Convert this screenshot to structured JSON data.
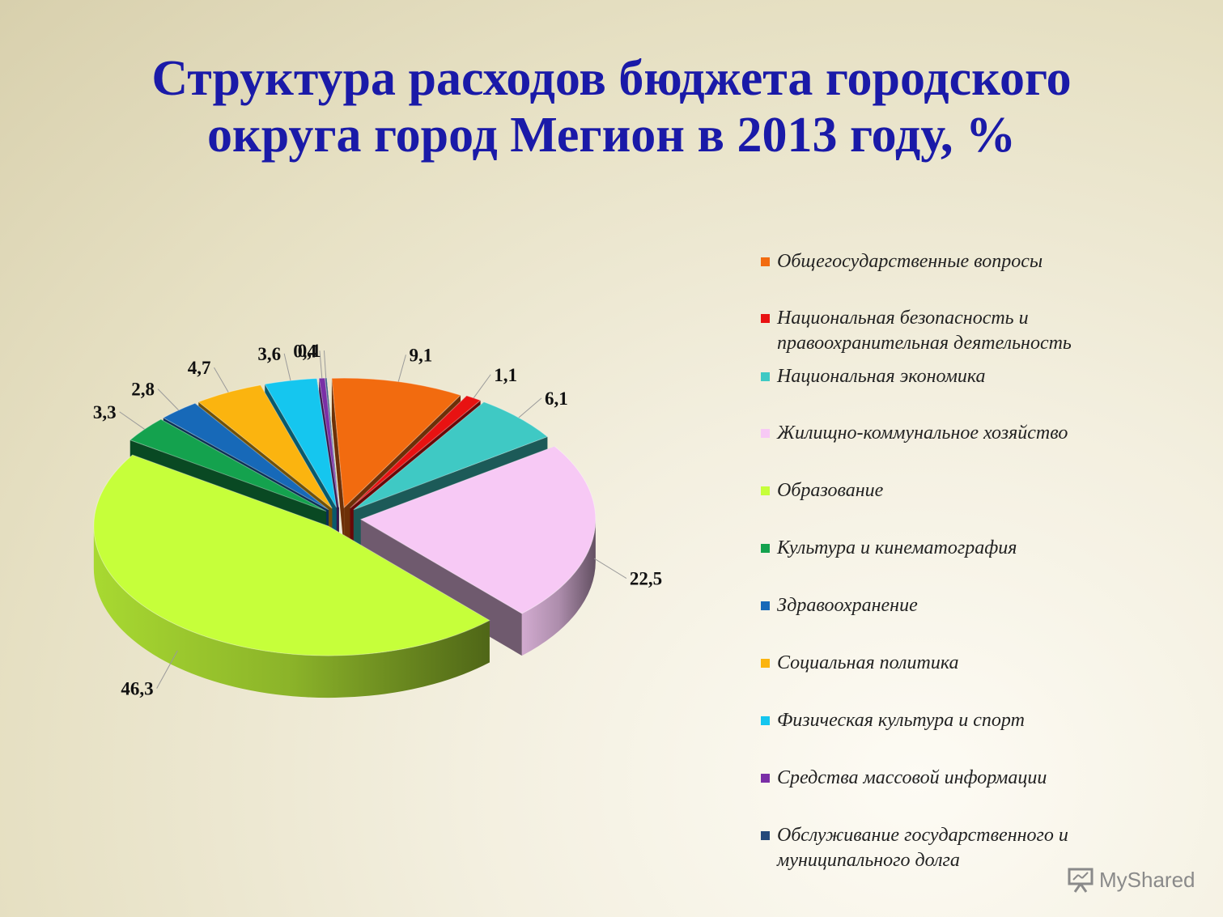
{
  "title_line1": "Структура расходов бюджета городского",
  "title_line2": "округа город Мегион в 2013 году, %",
  "watermark_text": "MyShared",
  "chart_data": {
    "type": "pie",
    "title": "Структура расходов бюджета городского округа город Мегион в 2013 году, %",
    "legend_position": "right",
    "slices": [
      {
        "label": "Общегосударственные вопросы",
        "value": 9.1,
        "value_label": "9,1",
        "color": "#f26b0f"
      },
      {
        "label": "Национальная безопасность и правоохранительная деятельность",
        "value": 1.1,
        "value_label": "1,1",
        "color": "#e81212"
      },
      {
        "label": "Национальная экономика",
        "value": 6.1,
        "value_label": "6,1",
        "color": "#3fc9c4"
      },
      {
        "label": "Жилищно-коммунальное хозяйство",
        "value": 22.5,
        "value_label": "22,5",
        "color": "#f7c9f5"
      },
      {
        "label": "Образование",
        "value": 46.3,
        "value_label": "46,3",
        "color": "#c6ff3a"
      },
      {
        "label": "Культура и кинематография",
        "value": 3.3,
        "value_label": "3,3",
        "color": "#14a24e"
      },
      {
        "label": "Здравоохранение",
        "value": 2.8,
        "value_label": "2,8",
        "color": "#1769b8"
      },
      {
        "label": "Социальная политика",
        "value": 4.7,
        "value_label": "4,7",
        "color": "#fbb40f"
      },
      {
        "label": "Физическая культура и спорт",
        "value": 3.6,
        "value_label": "3,6",
        "color": "#15c6ef"
      },
      {
        "label": "Средства массовой информации",
        "value": 0.4,
        "value_label": "0,4",
        "color": "#7a2fa6"
      },
      {
        "label": "Обслуживание государственного и муниципального долга",
        "value": 0.1,
        "value_label": "0,1",
        "color": "#254a7a"
      }
    ]
  }
}
